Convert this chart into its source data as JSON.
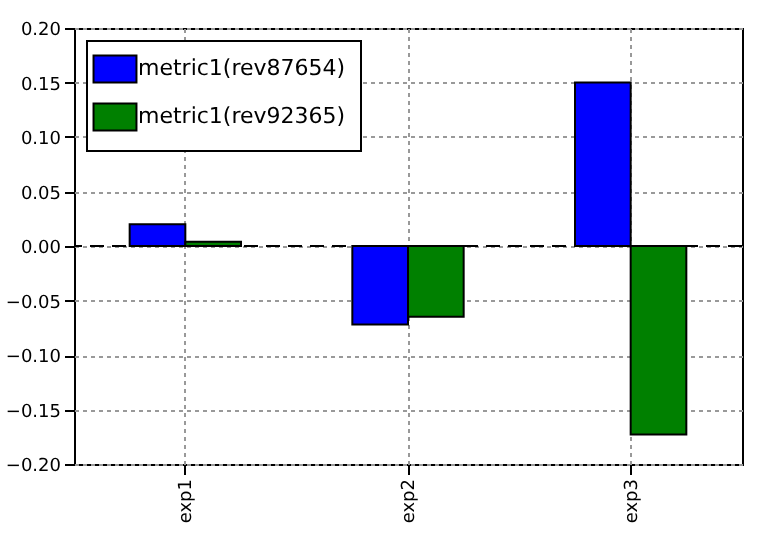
{
  "chart_data": {
    "type": "bar",
    "categories": [
      "exp1",
      "exp2",
      "exp3"
    ],
    "series": [
      {
        "name": "metric1(rev87654)",
        "color": "#0000ff",
        "values": [
          0.02,
          -0.072,
          0.15
        ]
      },
      {
        "name": "metric1(rev92365)",
        "color": "#008000",
        "values": [
          0.004,
          -0.065,
          -0.173
        ]
      }
    ],
    "ylim": [
      -0.2,
      0.2
    ],
    "yticks": [
      {
        "value": -0.2,
        "label": "−0.20"
      },
      {
        "value": -0.15,
        "label": "−0.15"
      },
      {
        "value": -0.1,
        "label": "−0.10"
      },
      {
        "value": -0.05,
        "label": "−0.05"
      },
      {
        "value": 0,
        "label": "0.00"
      },
      {
        "value": 0.05,
        "label": "0.05"
      },
      {
        "value": 0.1,
        "label": "0.10"
      },
      {
        "value": 0.15,
        "label": "0.15"
      },
      {
        "value": 0.2,
        "label": "0.20"
      }
    ],
    "ref_lines": [
      {
        "axis": "y",
        "value": 0,
        "line_style": "dashed",
        "color": "#000000"
      }
    ],
    "grid": true,
    "legend": "top left"
  }
}
